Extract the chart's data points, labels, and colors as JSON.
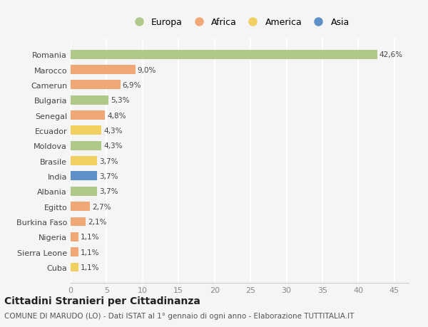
{
  "countries": [
    "Romania",
    "Marocco",
    "Camerun",
    "Bulgaria",
    "Senegal",
    "Ecuador",
    "Moldova",
    "Brasile",
    "India",
    "Albania",
    "Egitto",
    "Burkina Faso",
    "Nigeria",
    "Sierra Leone",
    "Cuba"
  ],
  "values": [
    42.6,
    9.0,
    6.9,
    5.3,
    4.8,
    4.3,
    4.3,
    3.7,
    3.7,
    3.7,
    2.7,
    2.1,
    1.1,
    1.1,
    1.1
  ],
  "labels": [
    "42,6%",
    "9,0%",
    "6,9%",
    "5,3%",
    "4,8%",
    "4,3%",
    "4,3%",
    "3,7%",
    "3,7%",
    "3,7%",
    "2,7%",
    "2,1%",
    "1,1%",
    "1,1%",
    "1,1%"
  ],
  "continents": [
    "Europa",
    "Africa",
    "Africa",
    "Europa",
    "Africa",
    "America",
    "Europa",
    "America",
    "Asia",
    "Europa",
    "Africa",
    "Africa",
    "Africa",
    "Africa",
    "America"
  ],
  "continent_colors": {
    "Europa": "#aec98a",
    "Africa": "#f0a878",
    "America": "#f0d060",
    "Asia": "#6090c8"
  },
  "legend_order": [
    "Europa",
    "Africa",
    "America",
    "Asia"
  ],
  "xlim": [
    0,
    47
  ],
  "xticks": [
    0,
    5,
    10,
    15,
    20,
    25,
    30,
    35,
    40,
    45
  ],
  "title": "Cittadini Stranieri per Cittadinanza",
  "subtitle": "COMUNE DI MARUDO (LO) - Dati ISTAT al 1° gennaio di ogni anno - Elaborazione TUTTITALIA.IT",
  "background_color": "#f5f5f5",
  "bar_height": 0.6,
  "label_fontsize": 7.5,
  "tick_label_fontsize": 8,
  "legend_fontsize": 9,
  "title_fontsize": 10,
  "subtitle_fontsize": 7.5
}
